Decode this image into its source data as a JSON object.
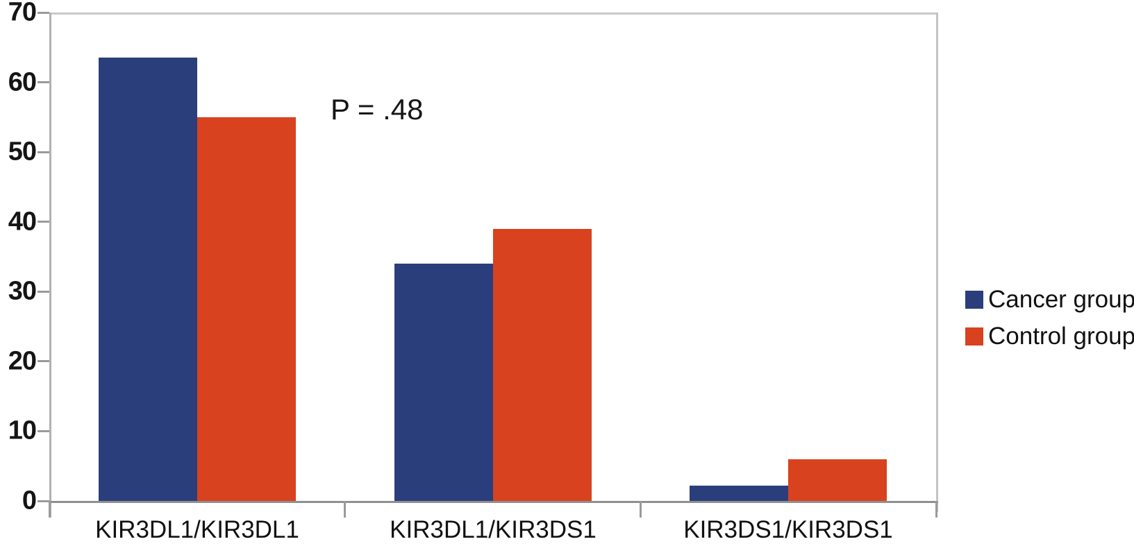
{
  "chart_data": {
    "type": "bar",
    "title": "",
    "categories": [
      "KIR3DL1/KIR3DL1",
      "KIR3DL1/KIR3DS1",
      "KIR3DS1/KIR3DS1"
    ],
    "series": [
      {
        "name": "Cancer group",
        "color": "#2b3e7c",
        "values": [
          63.5,
          34,
          2.2
        ]
      },
      {
        "name": "Control group",
        "color": "#d8421f",
        "values": [
          55,
          39,
          6
        ]
      }
    ],
    "xlabel": "",
    "ylabel": "",
    "ylim": [
      0,
      70
    ],
    "yticks": [
      0,
      10,
      20,
      30,
      40,
      50,
      60,
      70
    ],
    "annotation": "P = .48",
    "legend_position": "right",
    "grid": false
  }
}
